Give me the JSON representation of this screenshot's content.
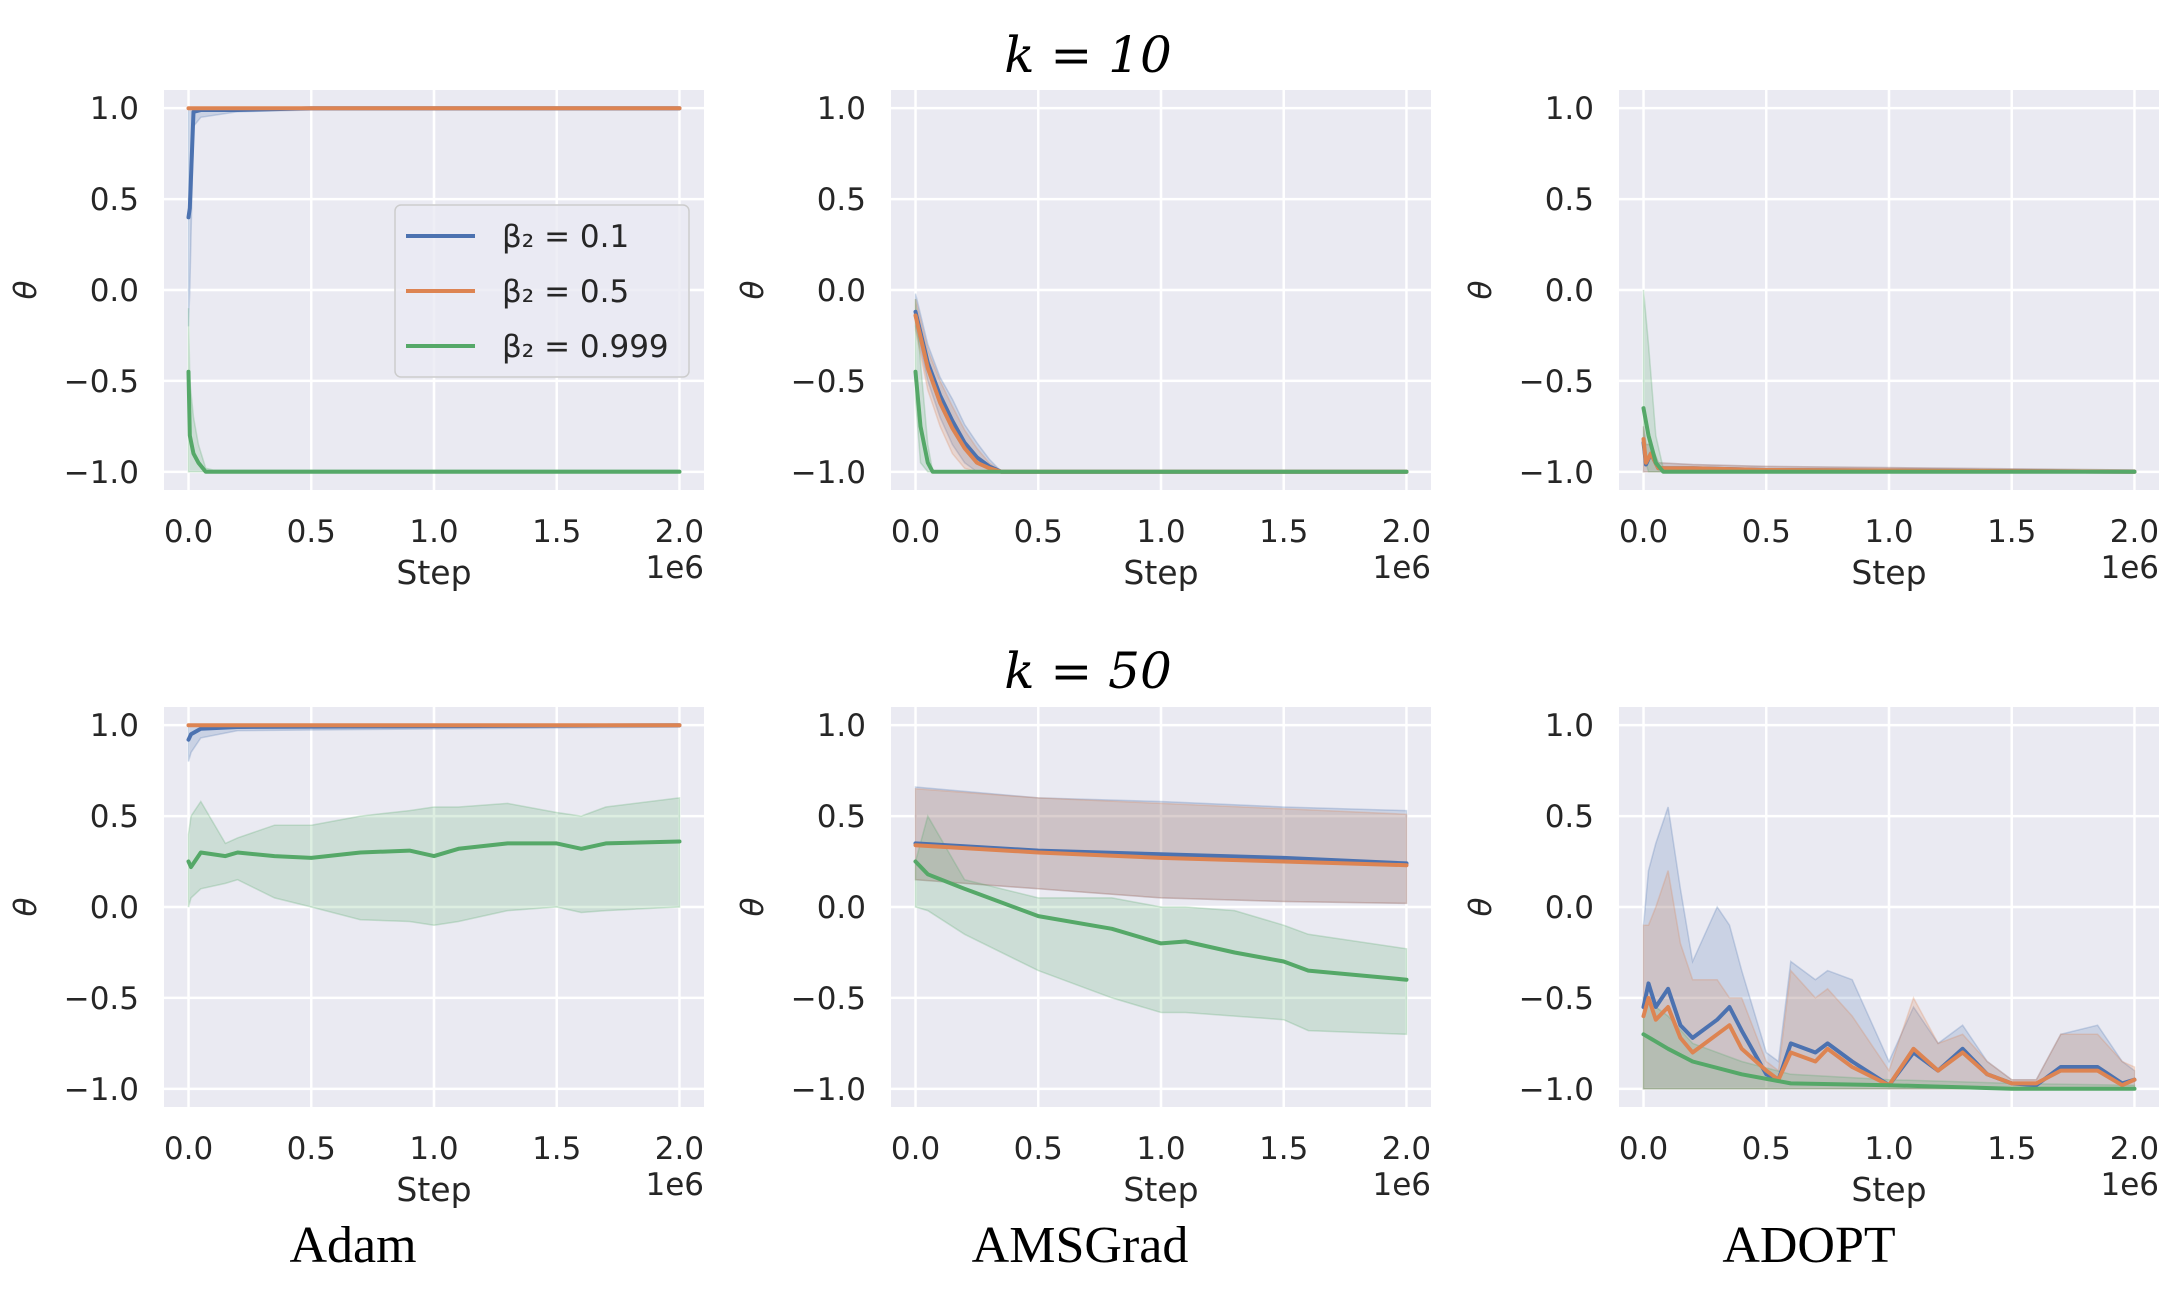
{
  "chart_data": {
    "type": "line",
    "row_titles": [
      "k = 10",
      "k = 50"
    ],
    "column_titles": [
      "Adam",
      "AMSGrad",
      "ADOPT"
    ],
    "xlabel": "Step",
    "x_offset_label": "1e6",
    "ylabel": "θ",
    "xlim": [
      -0.1,
      2.1
    ],
    "ylim": [
      -1.1,
      1.1
    ],
    "xticks": [
      "0.0",
      "0.5",
      "1.0",
      "1.5",
      "2.0"
    ],
    "yticks": [
      "1.0",
      "0.5",
      "0.0",
      "−0.5",
      "−1.0"
    ],
    "ytick_values": [
      1.0,
      0.5,
      0.0,
      -0.5,
      -1.0
    ],
    "xtick_values": [
      0.0,
      0.5,
      1.0,
      1.5,
      2.0
    ],
    "grid": true,
    "background": "#eaeaf2",
    "legend": {
      "placement": "center-right of first panel",
      "entries": [
        "β₂ = 0.1",
        "β₂ = 0.5",
        "β₂ = 0.999"
      ]
    },
    "series_colors": [
      "#4c72b0",
      "#dd8452",
      "#55a868"
    ],
    "panels": [
      {
        "row": 0,
        "col": 0,
        "series": [
          {
            "name": "β₂ = 0.1",
            "x": [
              0,
              0.005,
              0.02,
              0.05,
              0.2,
              0.5,
              1,
              1.5,
              2
            ],
            "y": [
              0.4,
              0.45,
              0.98,
              0.99,
              0.99,
              1,
              1,
              1,
              1
            ],
            "lower": [
              -0.2,
              0.0,
              0.9,
              0.95,
              0.98,
              0.99,
              0.99,
              0.99,
              0.99
            ],
            "upper": [
              1,
              1,
              1,
              1,
              1,
              1,
              1,
              1,
              1
            ]
          },
          {
            "name": "β₂ = 0.5",
            "x": [
              0,
              2
            ],
            "y": [
              1,
              1
            ]
          },
          {
            "name": "β₂ = 0.999",
            "x": [
              0,
              0.005,
              0.02,
              0.04,
              0.07,
              0.1,
              0.5,
              1,
              1.5,
              2
            ],
            "y": [
              -0.45,
              -0.8,
              -0.9,
              -0.95,
              -1,
              -1,
              -1,
              -1,
              -1,
              -1
            ],
            "lower": [
              -1,
              -1,
              -1,
              -1,
              -1,
              -1,
              -1,
              -1,
              -1,
              -1
            ],
            "upper": [
              -0.1,
              -0.5,
              -0.7,
              -0.85,
              -0.98,
              -0.99,
              -0.99,
              -0.99,
              -0.99,
              -0.99
            ]
          }
        ]
      },
      {
        "row": 0,
        "col": 1,
        "series": [
          {
            "name": "β₂ = 0.1",
            "x": [
              0,
              0.05,
              0.1,
              0.15,
              0.2,
              0.25,
              0.3,
              0.35,
              2
            ],
            "y": [
              -0.12,
              -0.4,
              -0.58,
              -0.72,
              -0.84,
              -0.92,
              -0.97,
              -1,
              -1
            ],
            "lower": [
              -0.2,
              -0.5,
              -0.7,
              -0.85,
              -0.95,
              -1,
              -1,
              -1,
              -1
            ],
            "upper": [
              -0.02,
              -0.3,
              -0.48,
              -0.6,
              -0.74,
              -0.84,
              -0.93,
              -1,
              -1
            ]
          },
          {
            "name": "β₂ = 0.5",
            "x": [
              0,
              0.05,
              0.1,
              0.15,
              0.2,
              0.25,
              0.3,
              0.35,
              2
            ],
            "y": [
              -0.14,
              -0.43,
              -0.62,
              -0.76,
              -0.87,
              -0.95,
              -0.98,
              -1,
              -1
            ],
            "lower": [
              -0.22,
              -0.55,
              -0.75,
              -0.9,
              -0.98,
              -1,
              -1,
              -1,
              -1
            ],
            "upper": [
              -0.05,
              -0.33,
              -0.5,
              -0.64,
              -0.77,
              -0.87,
              -0.95,
              -1,
              -1
            ]
          },
          {
            "name": "β₂ = 0.999",
            "x": [
              0,
              0.02,
              0.05,
              0.07,
              2
            ],
            "y": [
              -0.45,
              -0.75,
              -0.95,
              -1,
              -1
            ],
            "lower": [
              -0.6,
              -0.95,
              -1,
              -1,
              -1
            ],
            "upper": [
              -0.05,
              -0.4,
              -0.85,
              -1,
              -1
            ]
          }
        ]
      },
      {
        "row": 0,
        "col": 2,
        "series": [
          {
            "name": "β₂ = 0.1",
            "x": [
              0,
              0.01,
              0.03,
              0.06,
              0.2,
              0.5,
              2
            ],
            "y": [
              -0.84,
              -0.96,
              -0.9,
              -0.98,
              -0.98,
              -0.99,
              -1
            ],
            "lower": [
              -1,
              -1,
              -1,
              -1,
              -1,
              -1,
              -1
            ],
            "upper": [
              -0.75,
              -0.85,
              -0.85,
              -0.95,
              -0.96,
              -0.97,
              -0.99
            ]
          },
          {
            "name": "β₂ = 0.5",
            "x": [
              0,
              0.01,
              0.03,
              0.06,
              0.2,
              0.5,
              2
            ],
            "y": [
              -0.82,
              -0.95,
              -0.9,
              -0.98,
              -0.98,
              -0.99,
              -1
            ],
            "lower": [
              -1,
              -1,
              -1,
              -1,
              -1,
              -1,
              -1
            ],
            "upper": [
              -0.75,
              -0.85,
              -0.85,
              -0.95,
              -0.96,
              -0.97,
              -0.99
            ]
          },
          {
            "name": "β₂ = 0.999",
            "x": [
              0,
              0.02,
              0.05,
              0.08,
              2
            ],
            "y": [
              -0.65,
              -0.8,
              -0.95,
              -1,
              -1
            ],
            "lower": [
              -0.9,
              -1,
              -1,
              -1,
              -1
            ],
            "upper": [
              0.0,
              -0.3,
              -0.8,
              -0.98,
              -1
            ]
          }
        ]
      },
      {
        "row": 1,
        "col": 0,
        "series": [
          {
            "name": "β₂ = 0.1",
            "x": [
              0,
              0.01,
              0.05,
              0.2,
              2
            ],
            "y": [
              0.92,
              0.95,
              0.98,
              0.99,
              1
            ],
            "lower": [
              0.8,
              0.85,
              0.93,
              0.97,
              0.99
            ],
            "upper": [
              1,
              1,
              1,
              1,
              1
            ]
          },
          {
            "name": "β₂ = 0.5",
            "x": [
              0,
              2
            ],
            "y": [
              1,
              1
            ]
          },
          {
            "name": "β₂ = 0.999",
            "x": [
              0,
              0.01,
              0.05,
              0.15,
              0.2,
              0.35,
              0.5,
              0.7,
              0.9,
              1,
              1.1,
              1.3,
              1.5,
              1.6,
              1.7,
              2
            ],
            "y": [
              0.25,
              0.22,
              0.3,
              0.28,
              0.3,
              0.28,
              0.27,
              0.3,
              0.31,
              0.28,
              0.32,
              0.35,
              0.35,
              0.32,
              0.35,
              0.36
            ],
            "lower": [
              0,
              0.05,
              0.1,
              0.13,
              0.15,
              0.05,
              0.0,
              -0.07,
              -0.08,
              -0.1,
              -0.08,
              -0.02,
              0.0,
              -0.03,
              -0.02,
              0.0
            ],
            "upper": [
              0.4,
              0.5,
              0.58,
              0.35,
              0.38,
              0.45,
              0.45,
              0.5,
              0.53,
              0.55,
              0.55,
              0.57,
              0.52,
              0.5,
              0.55,
              0.6
            ]
          }
        ]
      },
      {
        "row": 1,
        "col": 1,
        "series": [
          {
            "name": "β₂ = 0.1",
            "x": [
              0,
              0.5,
              1,
              1.5,
              2
            ],
            "y": [
              0.35,
              0.31,
              0.29,
              0.27,
              0.24
            ],
            "lower": [
              0.15,
              0.1,
              0.05,
              0.03,
              0.02
            ],
            "upper": [
              0.66,
              0.6,
              0.58,
              0.55,
              0.53
            ]
          },
          {
            "name": "β₂ = 0.5",
            "x": [
              0,
              0.5,
              1,
              1.5,
              2
            ],
            "y": [
              0.34,
              0.3,
              0.27,
              0.25,
              0.23
            ],
            "lower": [
              0.15,
              0.1,
              0.05,
              0.03,
              0.02
            ],
            "upper": [
              0.65,
              0.6,
              0.57,
              0.54,
              0.51
            ]
          },
          {
            "name": "β₂ = 0.999",
            "x": [
              0,
              0.05,
              0.2,
              0.5,
              0.8,
              1,
              1.1,
              1.3,
              1.5,
              1.6,
              2
            ],
            "y": [
              0.25,
              0.18,
              0.1,
              -0.05,
              -0.12,
              -0.2,
              -0.19,
              -0.25,
              -0.3,
              -0.35,
              -0.4
            ],
            "lower": [
              0,
              -0.02,
              -0.15,
              -0.35,
              -0.5,
              -0.58,
              -0.58,
              -0.6,
              -0.62,
              -0.68,
              -0.7
            ],
            "upper": [
              0.25,
              0.5,
              0.15,
              0.05,
              0.05,
              0.0,
              0.0,
              -0.02,
              -0.1,
              -0.15,
              -0.23
            ]
          }
        ]
      },
      {
        "row": 1,
        "col": 2,
        "series": [
          {
            "name": "β₂ = 0.1",
            "x": [
              0,
              0.02,
              0.05,
              0.1,
              0.15,
              0.2,
              0.3,
              0.35,
              0.4,
              0.5,
              0.55,
              0.6,
              0.7,
              0.75,
              0.85,
              1.0,
              1.1,
              1.2,
              1.3,
              1.4,
              1.5,
              1.6,
              1.7,
              1.85,
              1.95,
              2
            ],
            "y": [
              -0.55,
              -0.42,
              -0.55,
              -0.45,
              -0.65,
              -0.72,
              -0.62,
              -0.55,
              -0.68,
              -0.92,
              -0.95,
              -0.75,
              -0.8,
              -0.75,
              -0.85,
              -0.98,
              -0.8,
              -0.9,
              -0.78,
              -0.92,
              -0.97,
              -0.98,
              -0.88,
              -0.88,
              -0.97,
              -0.95
            ],
            "lower": [
              -1,
              -1,
              -1,
              -1,
              -1,
              -1,
              -1,
              -1,
              -1,
              -1,
              -1,
              -1,
              -1,
              -1,
              -1,
              -1,
              -1,
              -1,
              -1,
              -1,
              -1,
              -1,
              -1,
              -1,
              -1,
              -1
            ],
            "upper": [
              -0.1,
              0.2,
              0.35,
              0.55,
              0.1,
              -0.3,
              0.0,
              -0.1,
              -0.35,
              -0.8,
              -0.85,
              -0.3,
              -0.4,
              -0.35,
              -0.4,
              -0.85,
              -0.55,
              -0.75,
              -0.65,
              -0.85,
              -0.95,
              -0.95,
              -0.7,
              -0.65,
              -0.85,
              -0.9
            ]
          },
          {
            "name": "β₂ = 0.5",
            "x": [
              0,
              0.02,
              0.05,
              0.1,
              0.15,
              0.2,
              0.3,
              0.35,
              0.4,
              0.5,
              0.55,
              0.6,
              0.7,
              0.75,
              0.85,
              1.0,
              1.1,
              1.2,
              1.3,
              1.4,
              1.5,
              1.6,
              1.7,
              1.85,
              1.95,
              2
            ],
            "y": [
              -0.6,
              -0.5,
              -0.62,
              -0.55,
              -0.72,
              -0.8,
              -0.7,
              -0.65,
              -0.78,
              -0.9,
              -0.95,
              -0.8,
              -0.85,
              -0.78,
              -0.88,
              -0.98,
              -0.78,
              -0.9,
              -0.8,
              -0.92,
              -0.97,
              -0.97,
              -0.9,
              -0.9,
              -0.98,
              -0.95
            ],
            "lower": [
              -1,
              -1,
              -1,
              -1,
              -1,
              -1,
              -1,
              -1,
              -1,
              -1,
              -1,
              -1,
              -1,
              -1,
              -1,
              -1,
              -1,
              -1,
              -1,
              -1,
              -1,
              -1,
              -1,
              -1,
              -1,
              -1
            ],
            "upper": [
              -0.1,
              -0.1,
              0.0,
              0.2,
              -0.2,
              -0.4,
              -0.4,
              -0.5,
              -0.5,
              -0.85,
              -0.9,
              -0.35,
              -0.5,
              -0.45,
              -0.6,
              -0.9,
              -0.5,
              -0.75,
              -0.7,
              -0.85,
              -0.95,
              -0.95,
              -0.7,
              -0.7,
              -0.85,
              -0.88
            ]
          },
          {
            "name": "β₂ = 0.999",
            "x": [
              0,
              0.1,
              0.2,
              0.4,
              0.6,
              1,
              1.5,
              2
            ],
            "y": [
              -0.7,
              -0.78,
              -0.85,
              -0.92,
              -0.97,
              -0.98,
              -1,
              -1
            ],
            "lower": [
              -1,
              -1,
              -1,
              -1,
              -1,
              -1,
              -1,
              -1
            ],
            "upper": [
              -0.5,
              -0.6,
              -0.75,
              -0.85,
              -0.92,
              -0.95,
              -0.97,
              -0.98
            ]
          }
        ]
      }
    ]
  }
}
